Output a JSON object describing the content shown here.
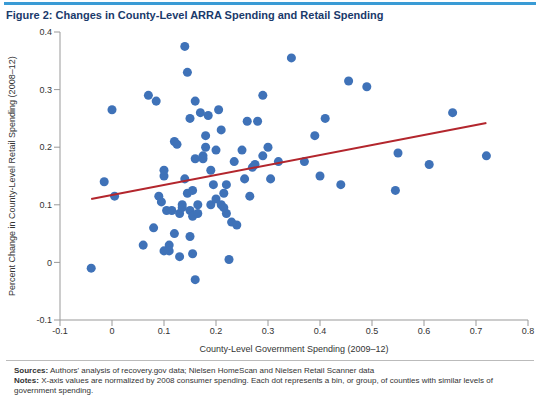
{
  "chart_data": {
    "type": "scatter",
    "title": "Figure 2: Changes in County-Level ARRA Spending and Retail Spending",
    "x_label": "County-Level Government Spending (2009–12)",
    "y_label": "Percent Change in County-Level Retail Spending (2008–12)",
    "x": [
      -0.04,
      -0.015,
      0,
      0.005,
      0.06,
      0.07,
      0.08,
      0.085,
      0.09,
      0.095,
      0.1,
      0.1,
      0.1,
      0.105,
      0.11,
      0.11,
      0.115,
      0.12,
      0.12,
      0.125,
      0.13,
      0.13,
      0.135,
      0.135,
      0.14,
      0.14,
      0.145,
      0.145,
      0.15,
      0.15,
      0.15,
      0.155,
      0.155,
      0.155,
      0.16,
      0.16,
      0.16,
      0.165,
      0.165,
      0.17,
      0.175,
      0.175,
      0.18,
      0.18,
      0.185,
      0.19,
      0.19,
      0.195,
      0.2,
      0.2,
      0.205,
      0.21,
      0.21,
      0.215,
      0.215,
      0.22,
      0.22,
      0.225,
      0.23,
      0.235,
      0.24,
      0.25,
      0.255,
      0.26,
      0.265,
      0.27,
      0.275,
      0.28,
      0.29,
      0.29,
      0.3,
      0.305,
      0.32,
      0.345,
      0.37,
      0.39,
      0.4,
      0.41,
      0.44,
      0.455,
      0.49,
      0.545,
      0.55,
      0.61,
      0.655,
      0.72
    ],
    "values": [
      -0.01,
      0.14,
      0.265,
      0.115,
      0.03,
      0.29,
      0.06,
      0.28,
      0.115,
      0.105,
      0.02,
      0.15,
      0.16,
      0.09,
      0.03,
      0.02,
      0.09,
      0.05,
      0.21,
      0.205,
      0.085,
      0.01,
      0.1,
      0.095,
      0.375,
      0.145,
      0.33,
      0.12,
      0.09,
      0.25,
      0.045,
      0.08,
      0.015,
      0.125,
      -0.03,
      0.28,
      0.18,
      0.1,
      0.085,
      0.26,
      0.185,
      0.18,
      0.22,
      0.2,
      0.255,
      0.1,
      0.16,
      0.135,
      0.195,
      0.11,
      0.265,
      0.23,
      0.1,
      0.12,
      0.095,
      0.135,
      0.085,
      0.005,
      0.07,
      0.175,
      0.065,
      0.195,
      0.145,
      0.245,
      0.115,
      0.165,
      0.17,
      0.245,
      0.185,
      0.29,
      0.2,
      0.145,
      0.175,
      0.355,
      0.175,
      0.22,
      0.15,
      0.25,
      0.135,
      0.315,
      0.305,
      0.125,
      0.19,
      0.17,
      0.26,
      0.185
    ],
    "color": "#3f72b8",
    "trend_line": {
      "x": [
        -0.04,
        0.72
      ],
      "values": [
        0.11,
        0.242
      ],
      "color": "#b3262d"
    },
    "xlim": [
      -0.1,
      0.8
    ],
    "xticks": [
      -0.1,
      0,
      0.1,
      0.2,
      0.3,
      0.4,
      0.5,
      0.6,
      0.7,
      0.8
    ],
    "ylim": [
      -0.1,
      0.4
    ],
    "yticks": [
      -0.1,
      0,
      0.1,
      0.2,
      0.3,
      0.4
    ],
    "grid": false,
    "sources_label": "Sources:",
    "sources": "Authors' analysis of recovery.gov data; Nielsen HomeScan and Nielsen Retail Scanner data",
    "notes_label": "Notes:",
    "notes": "X-axis values are normalized by 2008 consumer spending. Each dot represents a bin, or group, of counties with similar levels of government spending."
  }
}
